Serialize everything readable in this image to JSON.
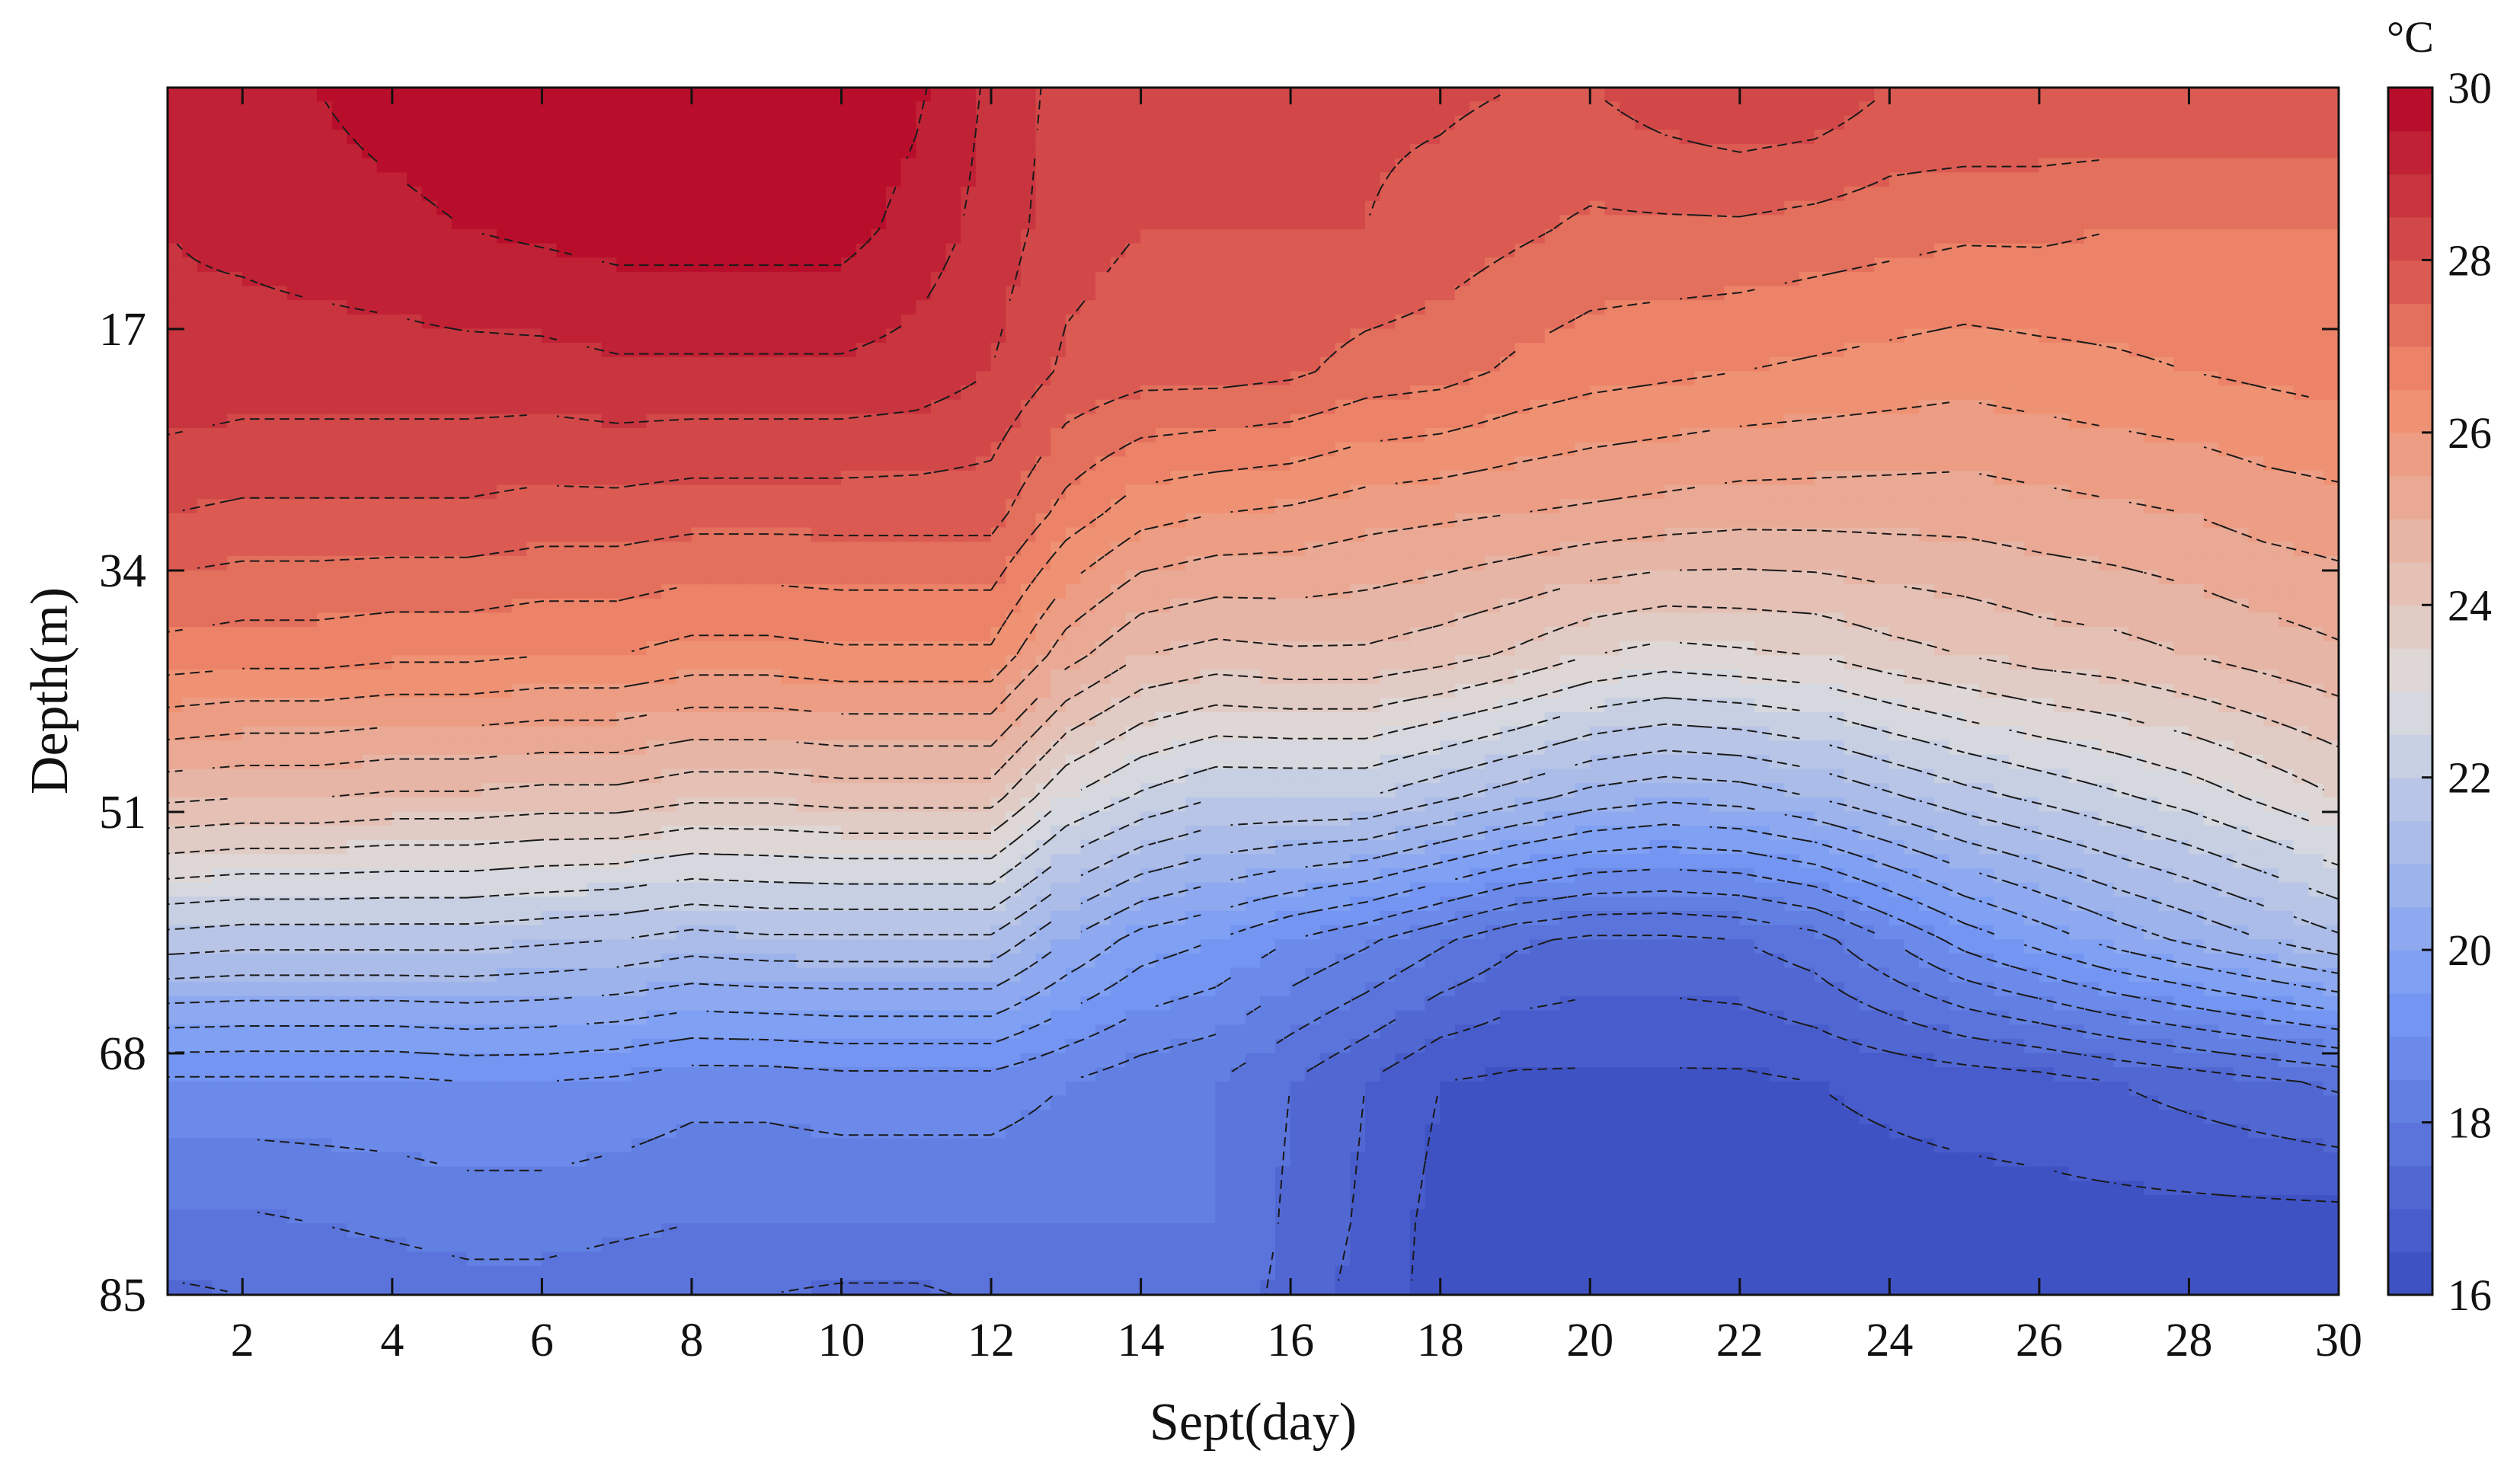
{
  "chart_data": {
    "type": "heatmap",
    "subtype": "filled-contour",
    "title": "",
    "xlabel": "Sept(day)",
    "ylabel": "Depth(m)",
    "xlim": [
      1,
      30
    ],
    "ylim": [
      0,
      85
    ],
    "y_reversed": true,
    "x_ticks": [
      2,
      4,
      6,
      8,
      10,
      12,
      14,
      16,
      18,
      20,
      22,
      24,
      26,
      28,
      30
    ],
    "y_ticks": [
      17,
      34,
      51,
      68,
      85
    ],
    "colorbar": {
      "unit": "°C",
      "range": [
        16,
        30
      ],
      "ticks": [
        16,
        18,
        20,
        22,
        24,
        26,
        28,
        30
      ],
      "colormap": "coolwarm",
      "color_low": "#3b4cc0",
      "color_mid": "#dddddd",
      "color_high": "#b40426"
    },
    "contour_interval": 0.5,
    "contour_style": "dashed black",
    "grid": false,
    "legend": "colorbar-right",
    "x": [
      1,
      2,
      3,
      4,
      5,
      6,
      7,
      8,
      9,
      10,
      11,
      12,
      13,
      14,
      15,
      16,
      17,
      18,
      19,
      20,
      21,
      22,
      23,
      24,
      25,
      26,
      27,
      28,
      29,
      30
    ],
    "depths": [
      0,
      10,
      20,
      30,
      40,
      50,
      60,
      70,
      80,
      85
    ],
    "values": [
      [
        29.0,
        29.2,
        29.5,
        29.8,
        30.0,
        30.0,
        30.0,
        30.0,
        30.0,
        30.0,
        29.6,
        28.9,
        28.3,
        28.1,
        28.0,
        28.0,
        28.1,
        28.1,
        28.0,
        28.0,
        28.3,
        28.5,
        28.4,
        28.0,
        28.0,
        28.0,
        28.0,
        28.0,
        28.0,
        28.0
      ],
      [
        29.0,
        29.1,
        29.2,
        29.3,
        29.5,
        29.6,
        29.7,
        29.7,
        29.7,
        29.7,
        29.3,
        28.8,
        28.2,
        28.0,
        28.0,
        28.0,
        28.0,
        27.8,
        27.6,
        27.4,
        27.4,
        27.4,
        27.3,
        27.2,
        27.1,
        27.1,
        27.0,
        27.0,
        27.0,
        27.0
      ],
      [
        28.9,
        28.8,
        28.8,
        28.8,
        28.8,
        28.8,
        28.9,
        28.9,
        28.9,
        28.9,
        28.8,
        28.5,
        27.9,
        27.7,
        27.7,
        27.6,
        27.3,
        27.2,
        26.9,
        26.7,
        26.6,
        26.5,
        26.4,
        26.3,
        26.2,
        26.3,
        26.4,
        26.5,
        26.6,
        26.7
      ],
      [
        28.0,
        27.9,
        27.9,
        27.9,
        27.9,
        27.8,
        27.8,
        27.7,
        27.7,
        27.7,
        27.7,
        27.7,
        26.8,
        26.2,
        26.0,
        25.9,
        25.7,
        25.6,
        25.5,
        25.4,
        25.3,
        25.2,
        25.2,
        25.2,
        25.2,
        25.3,
        25.4,
        25.5,
        25.7,
        25.8
      ],
      [
        26.8,
        26.7,
        26.7,
        26.6,
        26.6,
        26.5,
        26.5,
        26.3,
        26.3,
        26.4,
        26.4,
        26.4,
        25.2,
        24.5,
        24.3,
        24.4,
        24.4,
        24.2,
        23.9,
        23.5,
        23.3,
        23.4,
        23.5,
        23.8,
        24.0,
        24.2,
        24.3,
        24.5,
        24.7,
        24.9
      ],
      [
        24.6,
        24.5,
        24.5,
        24.4,
        24.4,
        24.3,
        24.3,
        24.1,
        24.1,
        24.2,
        24.2,
        24.2,
        23.0,
        22.4,
        22.0,
        22.0,
        22.0,
        21.6,
        21.2,
        20.8,
        20.6,
        20.7,
        21.0,
        21.4,
        21.8,
        22.1,
        22.4,
        22.7,
        23.1,
        23.5
      ],
      [
        21.8,
        21.7,
        21.7,
        21.7,
        21.7,
        21.6,
        21.5,
        21.3,
        21.4,
        21.4,
        21.4,
        21.4,
        20.5,
        19.8,
        19.5,
        19.0,
        18.6,
        18.1,
        17.6,
        17.4,
        17.4,
        17.5,
        17.8,
        18.5,
        19.2,
        19.7,
        20.2,
        20.6,
        21.0,
        21.4
      ],
      [
        18.9,
        18.9,
        18.9,
        18.9,
        19.0,
        19.0,
        18.9,
        18.7,
        18.7,
        18.8,
        18.8,
        18.8,
        18.5,
        18.2,
        18.0,
        17.5,
        17.0,
        16.5,
        16.4,
        16.4,
        16.4,
        16.4,
        16.5,
        16.6,
        16.7,
        16.8,
        17.0,
        17.2,
        17.4,
        17.6
      ],
      [
        17.9,
        17.9,
        18.0,
        18.1,
        18.2,
        18.2,
        18.1,
        18.0,
        18.0,
        18.0,
        18.0,
        18.0,
        18.0,
        18.0,
        18.0,
        17.4,
        16.9,
        16.3,
        16.3,
        16.3,
        16.3,
        16.3,
        16.3,
        16.3,
        16.3,
        16.3,
        16.3,
        16.3,
        16.3,
        16.3
      ],
      [
        17.4,
        17.5,
        17.6,
        17.7,
        17.8,
        17.8,
        17.7,
        17.6,
        17.5,
        17.4,
        17.4,
        17.6,
        17.8,
        17.9,
        17.9,
        17.3,
        16.8,
        16.3,
        16.3,
        16.3,
        16.3,
        16.3,
        16.3,
        16.3,
        16.3,
        16.3,
        16.3,
        16.3,
        16.3,
        16.3
      ]
    ]
  }
}
